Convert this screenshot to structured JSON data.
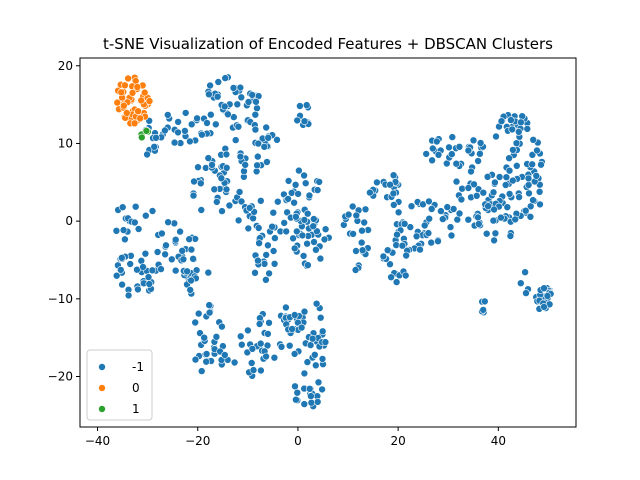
{
  "chart_data": {
    "type": "scatter",
    "title": "t-SNE Visualization of Encoded Features + DBSCAN Clusters",
    "xlabel": "",
    "ylabel": "",
    "xlim": [
      -43.5,
      55.5
    ],
    "ylim": [
      -26.5,
      21.0
    ],
    "x_ticks": [
      -40,
      -20,
      0,
      20,
      40
    ],
    "y_ticks": [
      -20,
      -10,
      0,
      10,
      20
    ],
    "x_tick_labels": [
      "−40",
      "−20",
      "0",
      "20",
      "40"
    ],
    "y_tick_labels": [
      "−20",
      "−10",
      "0",
      "10",
      "20"
    ],
    "grid": false,
    "legend_position": "lower-left",
    "series": [
      {
        "name": "-1",
        "color": "#1f77b4"
      },
      {
        "name": "0",
        "color": "#ff7f0e"
      },
      {
        "name": "1",
        "color": "#2ca02c"
      }
    ],
    "regions": [
      {
        "series": 0,
        "kind": "ellipse",
        "cx": -32,
        "cy": -7,
        "rx": 5,
        "ry": 3,
        "n": 30
      },
      {
        "series": 0,
        "kind": "ellipse",
        "cx": -33,
        "cy": 0,
        "rx": 5,
        "ry": 3,
        "n": 15
      },
      {
        "series": 0,
        "kind": "ellipse",
        "cx": -25,
        "cy": -4,
        "rx": 5,
        "ry": 4,
        "n": 30
      },
      {
        "series": 0,
        "kind": "ellipse",
        "cx": -24,
        "cy": 12,
        "rx": 7,
        "ry": 2,
        "n": 30
      },
      {
        "series": 0,
        "kind": "ellipse",
        "cx": -18,
        "cy": 5,
        "rx": 4,
        "ry": 4,
        "n": 25
      },
      {
        "series": 0,
        "kind": "ellipse",
        "cx": -20,
        "cy": -7,
        "rx": 3,
        "ry": 3,
        "n": 15
      },
      {
        "series": 0,
        "kind": "ellipse",
        "cx": -13,
        "cy": 15,
        "rx": 6,
        "ry": 4,
        "n": 45
      },
      {
        "series": 0,
        "kind": "ellipse",
        "cx": -13,
        "cy": 5,
        "rx": 3,
        "ry": 6,
        "n": 25
      },
      {
        "series": 0,
        "kind": "ellipse",
        "cx": -7,
        "cy": 10,
        "rx": 3,
        "ry": 4,
        "n": 20
      },
      {
        "series": 0,
        "kind": "ellipse",
        "cx": -5,
        "cy": 0,
        "rx": 6,
        "ry": 3,
        "n": 25
      },
      {
        "series": 0,
        "kind": "ellipse",
        "cx": -7,
        "cy": -5,
        "rx": 3,
        "ry": 3,
        "n": 15
      },
      {
        "series": 0,
        "kind": "ellipse",
        "cx": 1,
        "cy": 13,
        "rx": 2,
        "ry": 3,
        "n": 10
      },
      {
        "series": 0,
        "kind": "ellipse",
        "cx": 1,
        "cy": 3,
        "rx": 4,
        "ry": 4,
        "n": 30
      },
      {
        "series": 0,
        "kind": "ellipse",
        "cx": 3,
        "cy": -3,
        "rx": 4,
        "ry": 3,
        "n": 25
      },
      {
        "series": 0,
        "kind": "ellipse",
        "cx": -18,
        "cy": -15,
        "rx": 3,
        "ry": 5,
        "n": 25
      },
      {
        "series": 0,
        "kind": "ellipse",
        "cx": -10,
        "cy": -17,
        "rx": 7,
        "ry": 3,
        "n": 30
      },
      {
        "series": 0,
        "kind": "ellipse",
        "cx": -3,
        "cy": -13,
        "rx": 5,
        "ry": 2,
        "n": 20
      },
      {
        "series": 0,
        "kind": "ellipse",
        "cx": 2,
        "cy": -16,
        "rx": 4,
        "ry": 6,
        "n": 35
      },
      {
        "series": 0,
        "kind": "ellipse",
        "cx": 2,
        "cy": -22,
        "rx": 3,
        "ry": 2,
        "n": 15
      },
      {
        "series": 0,
        "kind": "ellipse",
        "cx": 12,
        "cy": 0,
        "rx": 3,
        "ry": 3,
        "n": 15
      },
      {
        "series": 0,
        "kind": "ellipse",
        "cx": 18,
        "cy": 4,
        "rx": 5,
        "ry": 2,
        "n": 20
      },
      {
        "series": 0,
        "kind": "ellipse",
        "cx": 22,
        "cy": -1,
        "rx": 5,
        "ry": 4,
        "n": 30
      },
      {
        "series": 0,
        "kind": "ellipse",
        "cx": 20,
        "cy": -5,
        "rx": 3,
        "ry": 3,
        "n": 15
      },
      {
        "series": 0,
        "kind": "ellipse",
        "cx": 28,
        "cy": 0,
        "rx": 4,
        "ry": 3,
        "n": 20
      },
      {
        "series": 0,
        "kind": "ellipse",
        "cx": 30,
        "cy": 9,
        "rx": 5,
        "ry": 2,
        "n": 20
      },
      {
        "series": 0,
        "kind": "ellipse",
        "cx": 35,
        "cy": 5,
        "rx": 4,
        "ry": 6,
        "n": 40
      },
      {
        "series": 0,
        "kind": "ellipse",
        "cx": 43,
        "cy": 11,
        "rx": 4,
        "ry": 3,
        "n": 30
      },
      {
        "series": 0,
        "kind": "ellipse",
        "cx": 44,
        "cy": 4,
        "rx": 5,
        "ry": 4,
        "n": 40
      },
      {
        "series": 0,
        "kind": "ellipse",
        "cx": 40,
        "cy": 0,
        "rx": 4,
        "ry": 3,
        "n": 20
      },
      {
        "series": 0,
        "kind": "ellipse",
        "cx": 47,
        "cy": 8,
        "rx": 2,
        "ry": 3,
        "n": 12
      },
      {
        "series": 0,
        "kind": "ellipse",
        "cx": 49,
        "cy": -10,
        "rx": 2,
        "ry": 1.5,
        "n": 25
      },
      {
        "series": 0,
        "kind": "ellipse",
        "cx": 37,
        "cy": -11,
        "rx": 0.8,
        "ry": 0.8,
        "n": 5
      },
      {
        "series": 0,
        "kind": "ellipse",
        "cx": 45,
        "cy": -8,
        "rx": 1.5,
        "ry": 1.5,
        "n": 4
      },
      {
        "series": 0,
        "kind": "ellipse",
        "cx": 13,
        "cy": -5,
        "rx": 2,
        "ry": 2,
        "n": 8
      },
      {
        "series": 0,
        "kind": "ellipse",
        "cx": -30,
        "cy": 10,
        "rx": 2,
        "ry": 1.5,
        "n": 6
      },
      {
        "series": 1,
        "kind": "ellipse",
        "cx": -33,
        "cy": 15.5,
        "rx": 3.5,
        "ry": 3,
        "n": 50
      },
      {
        "series": 2,
        "kind": "ellipse",
        "cx": -30.5,
        "cy": 11,
        "rx": 0.8,
        "ry": 0.8,
        "n": 4
      }
    ]
  }
}
